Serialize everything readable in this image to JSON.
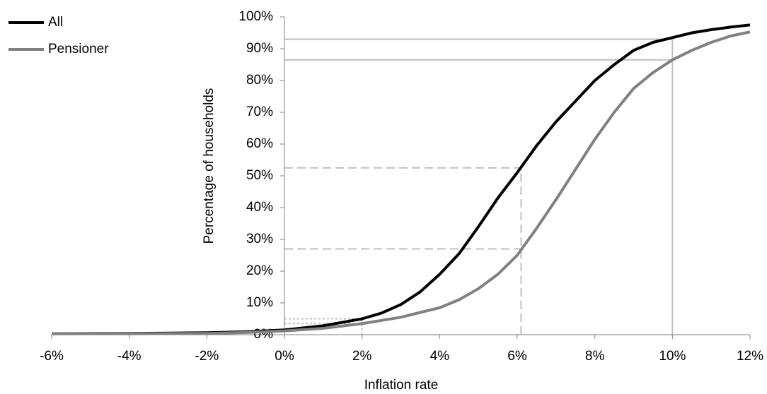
{
  "chart_data": {
    "type": "line",
    "x_label": "Inflation rate",
    "y_label": "Percentage of households",
    "x": [
      -6,
      -4,
      -2,
      -1,
      0,
      1,
      2,
      2.5,
      3,
      3.5,
      4,
      4.5,
      5,
      5.5,
      6,
      6.5,
      7,
      7.5,
      8,
      8.5,
      9,
      9.5,
      10,
      10.5,
      11,
      11.5,
      12
    ],
    "series": [
      {
        "name": "All",
        "color": "#000000",
        "values": [
          0.3,
          0.4,
          0.6,
          0.9,
          1.5,
          2.8,
          5,
          6.8,
          9.5,
          13.5,
          19,
          25.5,
          34,
          43,
          51,
          59.5,
          67,
          73.5,
          80,
          85,
          89.5,
          92,
          93.5,
          95,
          96,
          96.8,
          97.5
        ]
      },
      {
        "name": "Pensioner",
        "color": "#808080",
        "values": [
          0.3,
          0.3,
          0.4,
          0.7,
          1.2,
          2,
          3.5,
          4.5,
          5.5,
          7,
          8.5,
          11,
          14.5,
          19,
          25,
          33.5,
          42.5,
          52,
          61.5,
          70,
          77.5,
          82.5,
          86.5,
          89.5,
          92,
          94,
          95.3
        ]
      }
    ],
    "reference_lines": [
      {
        "x": 10,
        "y": [
          93,
          86.5
        ],
        "style": "solid"
      },
      {
        "x": 6.1,
        "y": [
          52.5,
          27
        ],
        "style": "dashed"
      },
      {
        "x": 2,
        "y": [
          5,
          3.5
        ],
        "style": "dotted"
      }
    ],
    "reference_color": "#bfbfbf",
    "xlim": [
      -6,
      12
    ],
    "xticks": [
      {
        "value": -6,
        "label": "-6%"
      },
      {
        "value": -4,
        "label": "-4%"
      },
      {
        "value": -2,
        "label": "-2%"
      },
      {
        "value": 0,
        "label": "0%"
      },
      {
        "value": 2,
        "label": "2%"
      },
      {
        "value": 4,
        "label": "4%"
      },
      {
        "value": 6,
        "label": "6%"
      },
      {
        "value": 8,
        "label": "8%"
      },
      {
        "value": 10,
        "label": "10%"
      },
      {
        "value": 12,
        "label": "12%"
      }
    ],
    "ylim": [
      0,
      100
    ],
    "yticks": [
      {
        "value": 0,
        "label": "0%"
      },
      {
        "value": 10,
        "label": "10%"
      },
      {
        "value": 20,
        "label": "20%"
      },
      {
        "value": 30,
        "label": "30%"
      },
      {
        "value": 40,
        "label": "40%"
      },
      {
        "value": 50,
        "label": "50%"
      },
      {
        "value": 60,
        "label": "60%"
      },
      {
        "value": 70,
        "label": "70%"
      },
      {
        "value": 80,
        "label": "80%"
      },
      {
        "value": 90,
        "label": "90%"
      },
      {
        "value": 100,
        "label": "100%"
      }
    ],
    "legend": "top-left"
  }
}
